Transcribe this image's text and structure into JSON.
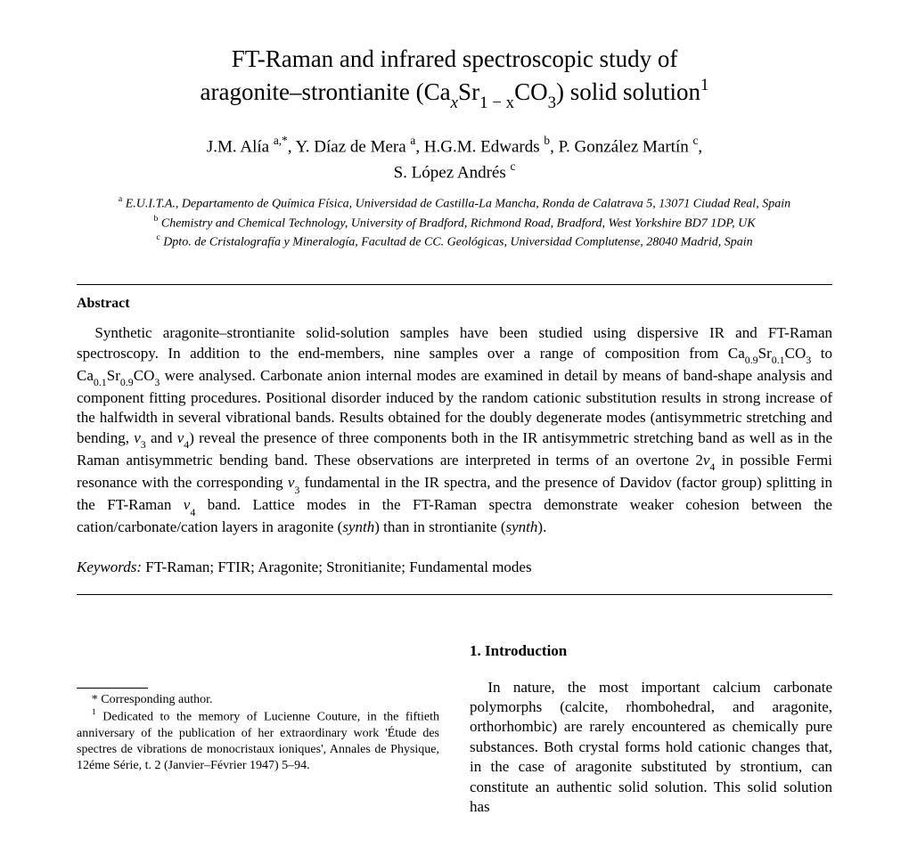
{
  "title": {
    "line1_a": "FT-Raman and infrared spectroscopic study of",
    "line2_a": "aragonite–strontianite (Ca",
    "line2_b": "Sr",
    "line2_c": "CO",
    "line2_d": ") solid solution",
    "sub_x": "x",
    "sub_1mx": "1 − x",
    "sub_3": "3",
    "sup_1": "1"
  },
  "authors": {
    "a1": "J.M. Alía",
    "a1_sup": "a,*",
    "a2": ", Y. Díaz de Mera",
    "a2_sup": "a",
    "a3": ", H.G.M. Edwards",
    "a3_sup": "b",
    "a4": ", P. González Martín",
    "a4_sup": "c",
    "a5": "S. López Andrés",
    "a5_sup": "c"
  },
  "affiliations": {
    "a_sup": "a",
    "a_text": " E.U.I.T.A., Departamento de Química Física, Universidad de Castilla-La Mancha, Ronda de Calatrava 5, 13071 Ciudad Real, Spain",
    "b_sup": "b",
    "b_text": " Chemistry and Chemical Technology, University of Bradford, Richmond Road, Bradford, West Yorkshire BD7 1DP, UK",
    "c_sup": "c",
    "c_text": " Dpto. de Cristalografía y Mineralogía, Facultad de CC. Geológicas, Universidad Complutense, 28040 Madrid, Spain"
  },
  "abstract": {
    "heading": "Abstract",
    "p1a": "Synthetic aragonite–strontianite solid-solution samples have been studied using dispersive IR and FT-Raman spectroscopy. In addition to the end-members, nine samples over a range of composition from Ca",
    "sub09": "0.9",
    "p1b": "Sr",
    "sub01": "0.1",
    "p1c": "CO",
    "sub3": "3",
    "p1d": " to Ca",
    "p1e": "Sr",
    "p1f": "CO",
    "p1g": " were analysed. Carbonate anion internal modes are examined in detail by means of band-shape analysis and component fitting procedures. Positional disorder induced by the random cationic substitution results in strong increase of the halfwidth in several vibrational bands. Results obtained for the doubly degenerate modes (antisymmetric stretching and bending, ",
    "nu3": "ν",
    "s3": "3",
    "p1h": " and ",
    "nu4": "ν",
    "s4": "4",
    "p1i": ") reveal the presence of three components both in the IR antisymmetric stretching band as well as in the Raman antisymmetric bending band. These observations are interpreted in terms of an overtone 2",
    "p1j": " in possible Fermi resonance with the corresponding ",
    "p1k": " fundamental in the IR spectra, and the presence of Davidov (factor group) splitting in the FT-Raman ",
    "p1l": " band. Lattice modes in the FT-Raman spectra demonstrate weaker cohesion between the cation/carbonate/cation layers in aragonite (",
    "synth": "synth",
    "p1m": ") than in strontianite (",
    "p1n": ")."
  },
  "keywords": {
    "label": "Keywords:",
    "text": " FT-Raman; FTIR; Aragonite; Stronitianite; Fundamental modes"
  },
  "footnotes": {
    "corr": "* Corresponding author.",
    "ded_sup": "1",
    "ded": " Dedicated to the memory of Lucienne Couture, in the fiftieth anniversary of the publication of her extraordinary work 'Étude des spectres de vibrations de monocristaux ioniques', Annales de Physique, 12éme Série, t. 2 (Janvier–Février 1947) 5–94."
  },
  "section1": {
    "heading": "1. Introduction",
    "body": "In nature, the most important calcium carbonate polymorphs (calcite, rhombohedral, and aragonite, orthorhombic) are rarely encountered as chemically pure substances. Both crystal forms hold cationic changes that, in the case of aragonite substituted by strontium, can constitute an authentic solid solution. This solid solution has"
  },
  "colors": {
    "text": "#000000",
    "bg": "#ffffff"
  }
}
